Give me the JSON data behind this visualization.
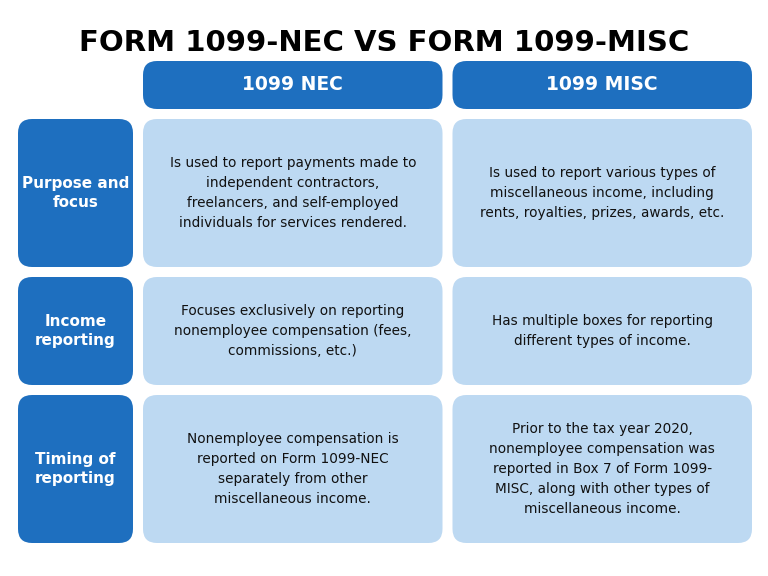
{
  "title": "FORM 1099-NEC VS FORM 1099-MISC",
  "bg_color": "#ffffff",
  "dark_blue": "#1E6FBF",
  "light_blue": "#BDD9F2",
  "body_text_color": "#111111",
  "col_headers": [
    "1099 NEC",
    "1099 MISC"
  ],
  "row_labels": [
    "Purpose and\nfocus",
    "Income\nreporting",
    "Timing of\nreporting"
  ],
  "nec_cells": [
    "Is used to report payments made to\nindependent contractors,\nfreelancers, and self-employed\nindividuals for services rendered.",
    "Focuses exclusively on reporting\nnonemployee compensation (fees,\ncommissions, etc.)",
    "Nonemployee compensation is\nreported on Form 1099-NEC\nseparately from other\nmiscellaneous income."
  ],
  "misc_cells": [
    "Is used to report various types of\nmiscellaneous income, including\nrents, royalties, prizes, awards, etc.",
    "Has multiple boxes for reporting\ndifferent types of income.",
    "Prior to the tax year 2020,\nnonemployee compensation was\nreported in Box 7 of Form 1099-\nMISC, along with other types of\nmiscellaneous income."
  ]
}
